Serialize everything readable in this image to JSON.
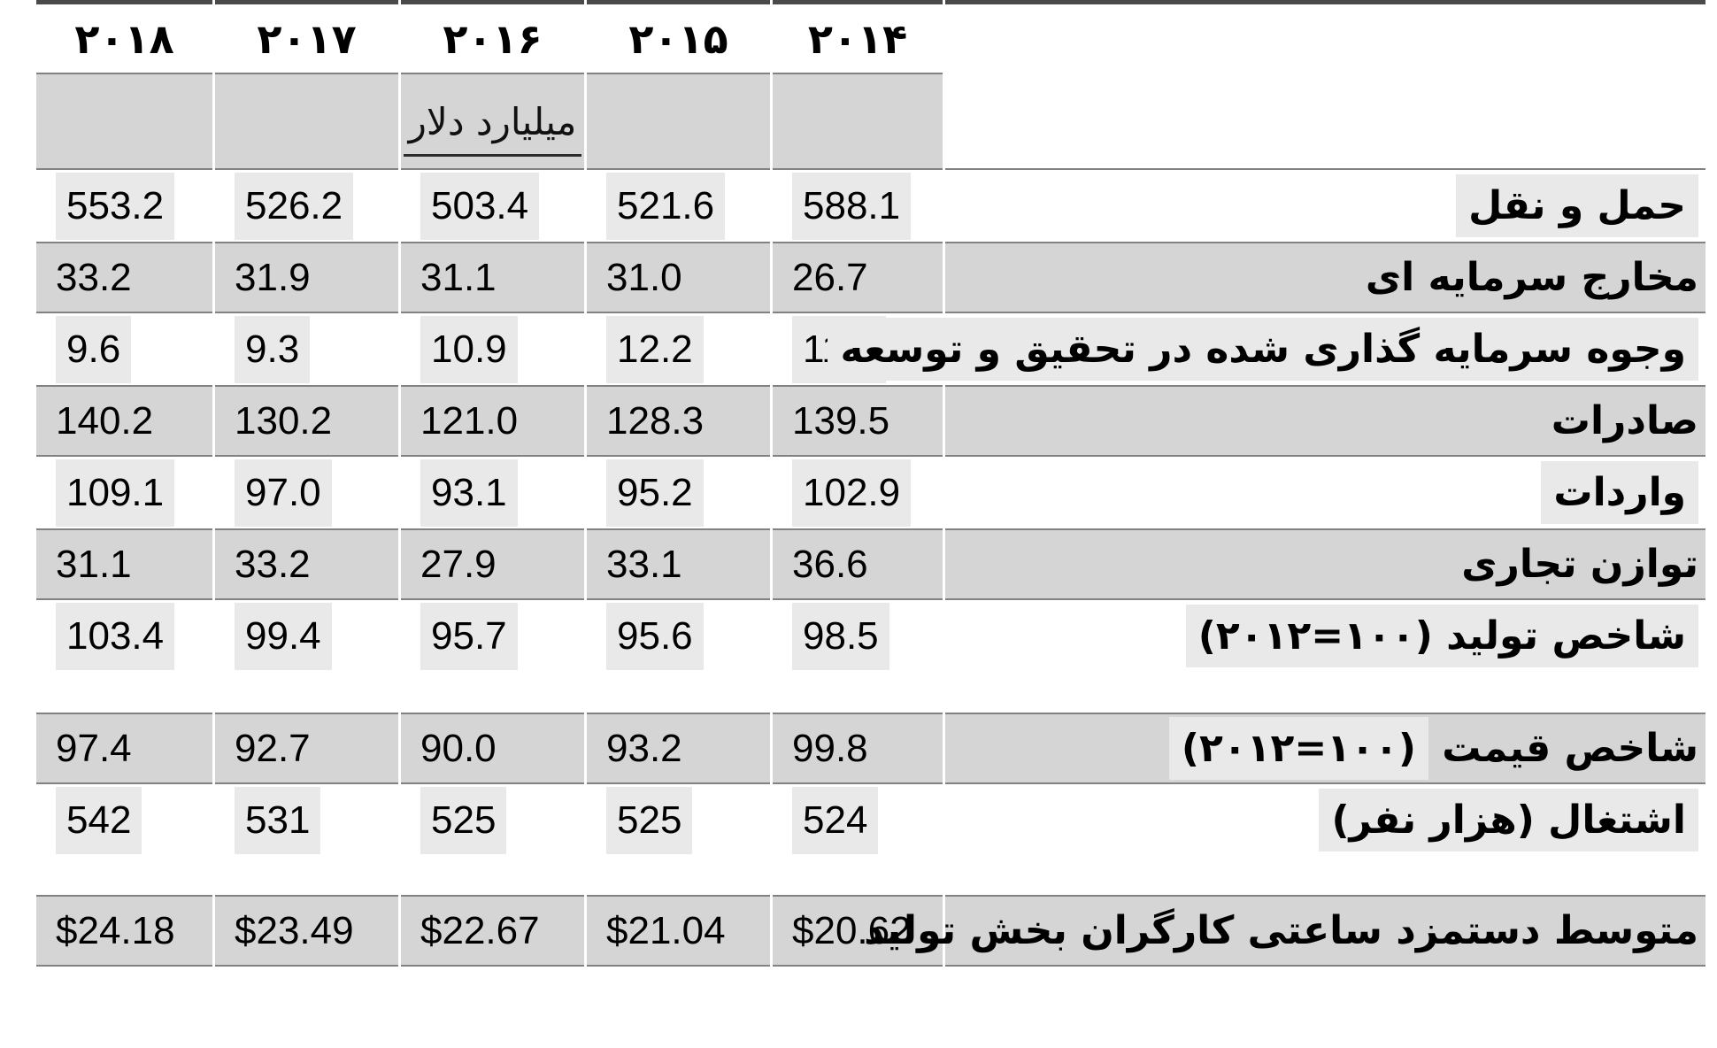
{
  "table": {
    "years": [
      "۲۰۱۸",
      "۲۰۱۷",
      "۲۰۱۶",
      "۲۰۱۵",
      "۲۰۱۴"
    ],
    "unit_label": "میلیارد دلار",
    "rows": [
      {
        "label": "حمل و نقل",
        "paren": "",
        "values": [
          "553.2",
          "526.2",
          "503.4",
          "521.6",
          "588.1"
        ],
        "shaded": false,
        "gap_before": false
      },
      {
        "label": "مخارج سرمایه ای",
        "paren": "",
        "values": [
          "33.2",
          "31.9",
          "31.1",
          "31.0",
          "26.7"
        ],
        "shaded": true,
        "gap_before": false
      },
      {
        "label": "وجوه سرمایه گذاری شده در تحقیق و توسعه",
        "paren": "",
        "values": [
          "9.6",
          "9.3",
          "10.9",
          "12.2",
          "11.8"
        ],
        "shaded": false,
        "gap_before": false
      },
      {
        "label": "صادرات",
        "paren": "",
        "values": [
          "140.2",
          "130.2",
          "121.0",
          "128.3",
          "139.5"
        ],
        "shaded": true,
        "gap_before": false
      },
      {
        "label": "واردات",
        "paren": "",
        "values": [
          "109.1",
          "97.0",
          "93.1",
          "95.2",
          "102.9"
        ],
        "shaded": false,
        "gap_before": false
      },
      {
        "label": "توازن تجاری",
        "paren": "",
        "values": [
          "31.1",
          "33.2",
          "27.9",
          "33.1",
          "36.6"
        ],
        "shaded": true,
        "gap_before": false
      },
      {
        "label": "شاخص تولید",
        "paren": "(۱۰۰=۲۰۱۲)",
        "values": [
          "103.4",
          "99.4",
          "95.7",
          "95.6",
          "98.5"
        ],
        "shaded": false,
        "gap_before": false
      },
      {
        "label": "شاخص قیمت",
        "paren": "(۱۰۰=۲۰۱۲)",
        "values": [
          "97.4",
          "92.7",
          "90.0",
          "93.2",
          "99.8"
        ],
        "shaded": true,
        "gap_before": true
      },
      {
        "label": "اشتغال (هزار نفر)",
        "paren": "",
        "values": [
          "542",
          "531",
          "525",
          "525",
          "524"
        ],
        "shaded": false,
        "gap_before": false
      },
      {
        "label": "متوسط دستمزد ساعتی کارگران بخش تولید",
        "paren": "",
        "values": [
          "$24.18",
          "$23.49",
          "$22.67",
          "$21.04",
          "$20.62"
        ],
        "shaded": true,
        "gap_before": true
      }
    ]
  },
  "colors": {
    "shaded_band": "#d5d5d5",
    "highlight_box": "#e9e9e9",
    "rule": "#828282",
    "top_rule": "#4a4a4a",
    "text": "#000000"
  },
  "chart_data": {
    "type": "table",
    "direction": "rtl",
    "title": "",
    "columns_display": [
      "۲۰۱۸",
      "۲۰۱۷",
      "۲۰۱۶",
      "۲۰۱۵",
      "۲۰۱۴"
    ],
    "columns": [
      2018,
      2017,
      2016,
      2015,
      2014
    ],
    "unit_header": "میلیارد دلار",
    "rows": [
      {
        "label": "حمل و نقل",
        "values": [
          553.2,
          526.2,
          503.4,
          521.6,
          588.1
        ]
      },
      {
        "label": "مخارج سرمایه ای",
        "values": [
          33.2,
          31.9,
          31.1,
          31.0,
          26.7
        ]
      },
      {
        "label": "وجوه سرمایه گذاری شده در تحقیق و توسعه",
        "values": [
          9.6,
          9.3,
          10.9,
          12.2,
          11.8
        ]
      },
      {
        "label": "صادرات",
        "values": [
          140.2,
          130.2,
          121.0,
          128.3,
          139.5
        ]
      },
      {
        "label": "واردات",
        "values": [
          109.1,
          97.0,
          93.1,
          95.2,
          102.9
        ]
      },
      {
        "label": "توازن تجاری",
        "values": [
          31.1,
          33.2,
          27.9,
          33.1,
          36.6
        ]
      },
      {
        "label": "شاخص تولید (۱۰۰=۲۰۱۲)",
        "values": [
          103.4,
          99.4,
          95.7,
          95.6,
          98.5
        ]
      },
      {
        "label": "شاخص قیمت (۱۰۰=۲۰۱۲)",
        "values": [
          97.4,
          92.7,
          90.0,
          93.2,
          99.8
        ]
      },
      {
        "label": "اشتغال (هزار نفر)",
        "values": [
          542,
          531,
          525,
          525,
          524
        ]
      },
      {
        "label": "متوسط دستمزد ساعتی کارگران بخش تولید",
        "values": [
          "$24.18",
          "$23.49",
          "$22.67",
          "$21.04",
          "$20.62"
        ]
      }
    ]
  }
}
